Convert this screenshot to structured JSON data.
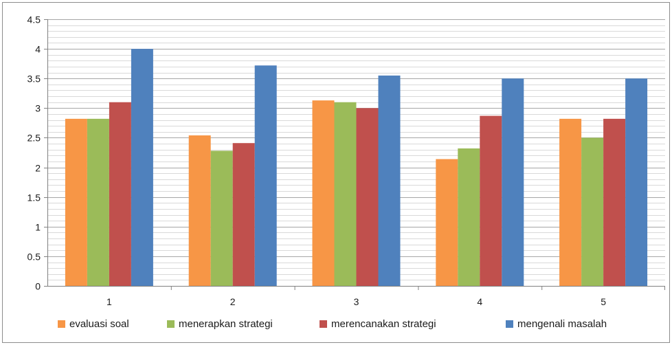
{
  "chart_data": {
    "type": "bar",
    "categories": [
      "1",
      "2",
      "3",
      "4",
      "5"
    ],
    "series": [
      {
        "name": "evaluasi soal",
        "color": "#f79646",
        "values": [
          2.82,
          2.54,
          3.13,
          2.14,
          2.82
        ]
      },
      {
        "name": "menerapkan strategi",
        "color": "#9bbb59",
        "values": [
          2.82,
          2.28,
          3.1,
          2.32,
          2.5
        ]
      },
      {
        "name": "merencanakan strategi",
        "color": "#c0504d",
        "values": [
          3.1,
          2.41,
          3.0,
          2.87,
          2.82
        ]
      },
      {
        "name": "mengenali masalah",
        "color": "#4f81bd",
        "values": [
          4.0,
          3.72,
          3.55,
          3.5,
          3.5
        ]
      }
    ],
    "ylim": [
      0,
      4.5
    ],
    "y_ticks": [
      "0",
      "0.5",
      "1",
      "1.5",
      "2",
      "2.5",
      "3",
      "3.5",
      "4",
      "4.5"
    ],
    "grid": true,
    "legend_position": "bottom"
  }
}
